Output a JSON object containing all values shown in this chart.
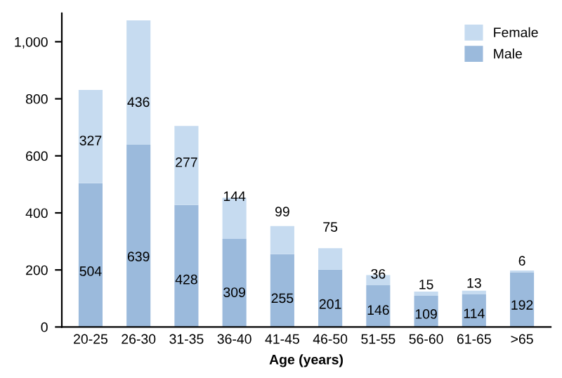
{
  "chart_data": {
    "type": "bar",
    "stacked": true,
    "xlabel": "Age (years)",
    "categories": [
      "20-25",
      "26-30",
      "31-35",
      "36-40",
      "41-45",
      "46-50",
      "51-55",
      "56-60",
      "61-65",
      ">65"
    ],
    "series": [
      {
        "name": "Male",
        "color": "#9bbadc",
        "values": [
          504,
          639,
          428,
          309,
          255,
          201,
          146,
          109,
          114,
          192
        ]
      },
      {
        "name": "Female",
        "color": "#c6dbf0",
        "values": [
          327,
          436,
          277,
          144,
          99,
          75,
          36,
          15,
          13,
          6
        ]
      }
    ],
    "ylim": [
      0,
      1100
    ],
    "yticks": [
      0,
      200,
      400,
      600,
      800,
      {
        "value": 1000,
        "label": "1,000"
      }
    ],
    "data_labels": true,
    "grid": false,
    "legend": "top right"
  }
}
